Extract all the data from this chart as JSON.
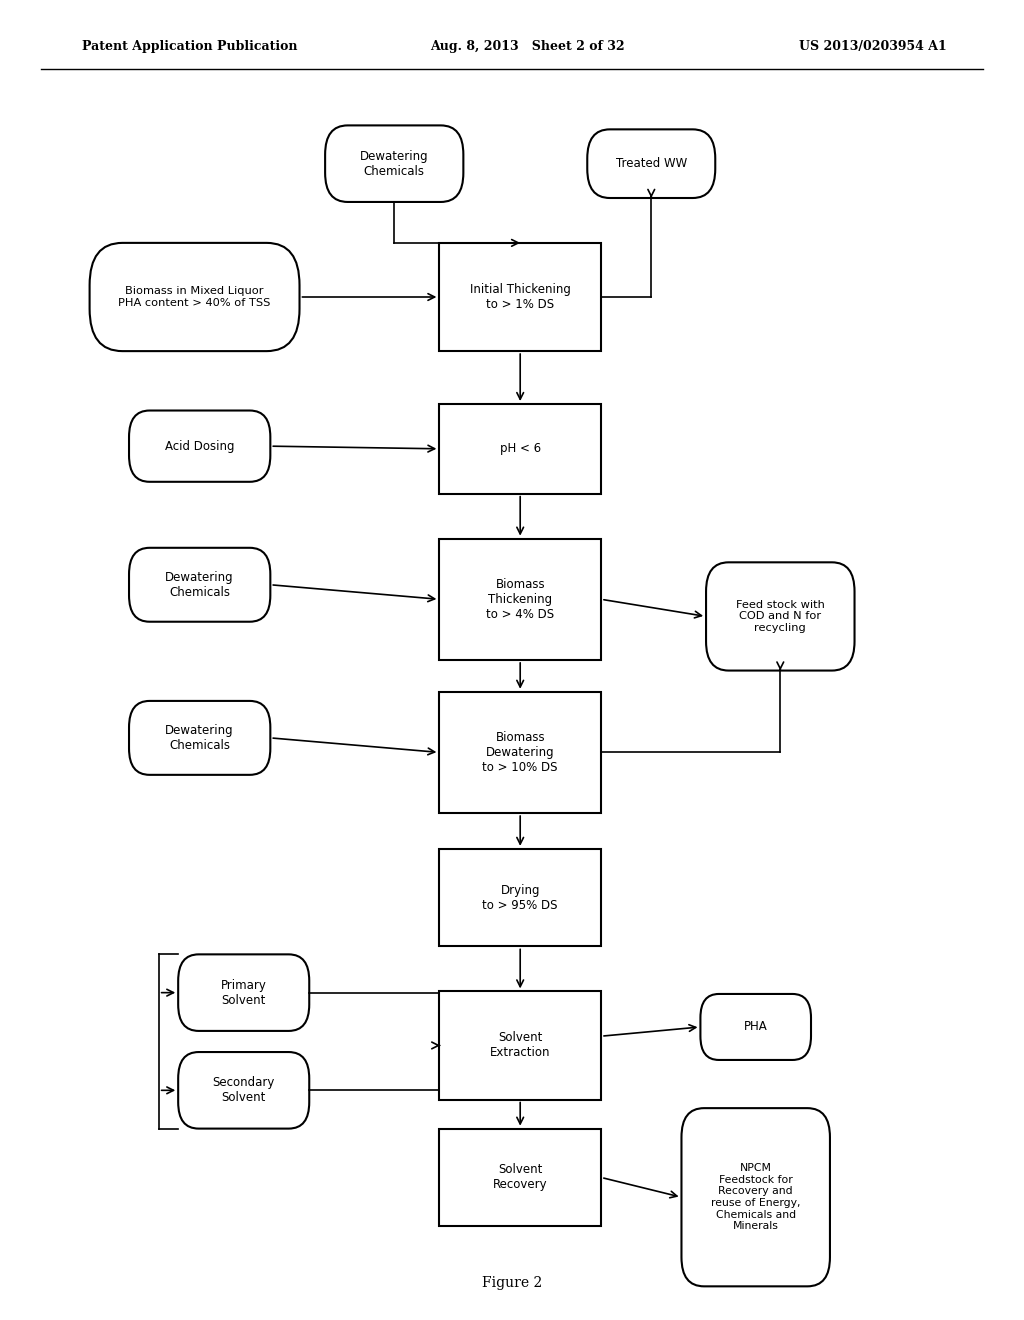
{
  "bg_color": "#ffffff",
  "header_left": "Patent Application Publication",
  "header_mid": "Aug. 8, 2013   Sheet 2 of 32",
  "header_right": "US 2013/0203954 A1",
  "footer": "Figure 2"
}
